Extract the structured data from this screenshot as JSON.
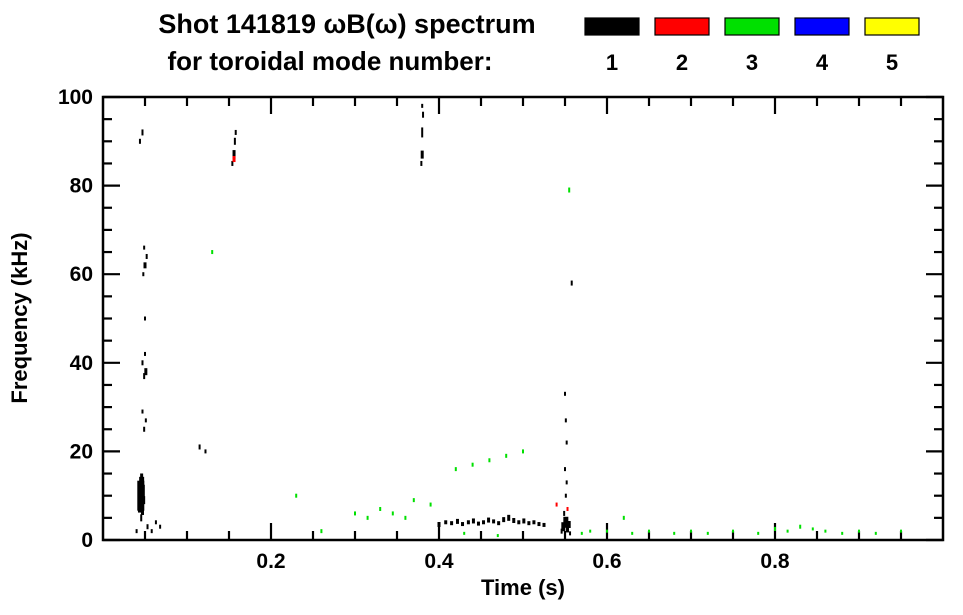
{
  "chart_data": {
    "type": "scatter",
    "title_line1": "Shot 141819 ωB(ω) spectrum",
    "title_line2": "for toroidal mode number:",
    "xlabel": "Time (s)",
    "ylabel": "Frequency (kHz)",
    "xlim": [
      0,
      1.0
    ],
    "ylim": [
      0,
      100
    ],
    "x_major_ticks": [
      0.2,
      0.4,
      0.6,
      0.8
    ],
    "x_major_labels": [
      "0.2",
      "0.4",
      "0.6",
      "0.8"
    ],
    "x_minor_step": 0.05,
    "y_major_ticks": [
      0,
      20,
      40,
      60,
      80,
      100
    ],
    "y_major_labels": [
      "0",
      "20",
      "40",
      "60",
      "80",
      "100"
    ],
    "y_minor_step": 5,
    "grid": false,
    "legend_position": "top-right",
    "legend": [
      {
        "label": "1",
        "color": "#000000"
      },
      {
        "label": "2",
        "color": "#ff0000"
      },
      {
        "label": "3",
        "color": "#00e000"
      },
      {
        "label": "4",
        "color": "#0000ff"
      },
      {
        "label": "5",
        "color": "#ffff00"
      }
    ],
    "series": [
      {
        "name": "toroidal mode n=1",
        "color": "#000000",
        "points": [
          [
            0.045,
            10,
            7,
            30
          ],
          [
            0.046,
            12,
            5,
            20
          ],
          [
            0.044,
            8,
            4,
            16
          ],
          [
            0.047,
            7,
            3,
            12
          ],
          [
            0.046,
            14,
            3,
            9
          ],
          [
            0.0455,
            5,
            2,
            7
          ],
          [
            0.048,
            11,
            3,
            13
          ],
          [
            0.043,
            12,
            2,
            9
          ],
          [
            0.049,
            9,
            2,
            8
          ],
          [
            0.053,
            3,
            2,
            5
          ],
          [
            0.058,
            2,
            2,
            4
          ],
          [
            0.063,
            4,
            2,
            4
          ],
          [
            0.068,
            3,
            2,
            4
          ],
          [
            0.04,
            2,
            2,
            4
          ],
          [
            0.049,
            25,
            2,
            5
          ],
          [
            0.051,
            27,
            2,
            4
          ],
          [
            0.047,
            29,
            2,
            4
          ],
          [
            0.049,
            37,
            2,
            6
          ],
          [
            0.051,
            38,
            3,
            7
          ],
          [
            0.047,
            40,
            2,
            5
          ],
          [
            0.05,
            42,
            2,
            4
          ],
          [
            0.05,
            50,
            2,
            4
          ],
          [
            0.048,
            60,
            2,
            4
          ],
          [
            0.05,
            62,
            3,
            6
          ],
          [
            0.052,
            64,
            2,
            5
          ],
          [
            0.049,
            66,
            2,
            4
          ],
          [
            0.044,
            90,
            2,
            5
          ],
          [
            0.047,
            92,
            2,
            6
          ],
          [
            0.115,
            21,
            2,
            5
          ],
          [
            0.122,
            20,
            2,
            4
          ],
          [
            0.154,
            85,
            2,
            5
          ],
          [
            0.156,
            87,
            3,
            9
          ],
          [
            0.157,
            90,
            2,
            7
          ],
          [
            0.158,
            92,
            2,
            5
          ],
          [
            0.379,
            85,
            2,
            5
          ],
          [
            0.38,
            87,
            3,
            8
          ],
          [
            0.38,
            92,
            2,
            10
          ],
          [
            0.381,
            96,
            2,
            6
          ],
          [
            0.38,
            98,
            2,
            4
          ],
          [
            0.4,
            3.5,
            3,
            5
          ],
          [
            0.408,
            4,
            3,
            4
          ],
          [
            0.415,
            3.8,
            3,
            4
          ],
          [
            0.422,
            4.2,
            3,
            5
          ],
          [
            0.428,
            3.6,
            3,
            4
          ],
          [
            0.435,
            4,
            3,
            4
          ],
          [
            0.441,
            4.3,
            3,
            5
          ],
          [
            0.447,
            3.7,
            3,
            4
          ],
          [
            0.453,
            4,
            3,
            4
          ],
          [
            0.459,
            4.5,
            3,
            5
          ],
          [
            0.465,
            4.2,
            3,
            4
          ],
          [
            0.471,
            3.8,
            3,
            4
          ],
          [
            0.477,
            4.6,
            3,
            5
          ],
          [
            0.483,
            5,
            3,
            6
          ],
          [
            0.489,
            4.4,
            3,
            5
          ],
          [
            0.495,
            4,
            3,
            4
          ],
          [
            0.501,
            4.3,
            3,
            5
          ],
          [
            0.507,
            3.8,
            3,
            4
          ],
          [
            0.513,
            4,
            3,
            4
          ],
          [
            0.519,
            3.6,
            3,
            4
          ],
          [
            0.525,
            3.4,
            3,
            4
          ],
          [
            0.546,
            2,
            2,
            5
          ],
          [
            0.548,
            3,
            4,
            9
          ],
          [
            0.549,
            6,
            2,
            5
          ],
          [
            0.551,
            4,
            5,
            11
          ],
          [
            0.553,
            2.5,
            3,
            7
          ],
          [
            0.555,
            3.5,
            3,
            7
          ],
          [
            0.556,
            1.5,
            2,
            4
          ],
          [
            0.551,
            10,
            2,
            4
          ],
          [
            0.552,
            13,
            2,
            4
          ],
          [
            0.55,
            16,
            2,
            4
          ],
          [
            0.552,
            22,
            2,
            4
          ],
          [
            0.551,
            27,
            2,
            4
          ],
          [
            0.55,
            33,
            2,
            4
          ],
          [
            0.558,
            58,
            2,
            5
          ]
        ]
      },
      {
        "name": "toroidal mode n=2",
        "color": "#ff0000",
        "points": [
          [
            0.156,
            86,
            3,
            6
          ],
          [
            0.54,
            8,
            2,
            4
          ],
          [
            0.553,
            7,
            2,
            4
          ]
        ]
      },
      {
        "name": "toroidal mode n=3",
        "color": "#00e000",
        "points": [
          [
            0.555,
            79,
            2,
            5
          ],
          [
            0.13,
            65,
            2,
            4
          ],
          [
            0.23,
            10,
            2,
            4
          ],
          [
            0.26,
            2,
            2,
            4
          ],
          [
            0.3,
            6,
            2,
            4
          ],
          [
            0.315,
            5,
            2,
            4
          ],
          [
            0.33,
            7,
            2,
            4
          ],
          [
            0.345,
            6,
            2,
            4
          ],
          [
            0.36,
            5,
            2,
            4
          ],
          [
            0.37,
            9,
            2,
            4
          ],
          [
            0.39,
            8,
            2,
            4
          ],
          [
            0.42,
            16,
            2,
            4
          ],
          [
            0.44,
            17,
            2,
            4
          ],
          [
            0.46,
            18,
            2,
            4
          ],
          [
            0.48,
            19,
            2,
            4
          ],
          [
            0.5,
            20,
            2,
            4
          ],
          [
            0.43,
            1.5,
            2,
            3
          ],
          [
            0.47,
            1,
            2,
            3
          ],
          [
            0.57,
            1.5,
            2,
            3
          ],
          [
            0.58,
            2,
            2,
            3
          ],
          [
            0.6,
            2,
            2,
            3
          ],
          [
            0.62,
            5,
            2,
            4
          ],
          [
            0.63,
            1.5,
            2,
            3
          ],
          [
            0.65,
            2,
            2,
            3
          ],
          [
            0.68,
            1.5,
            2,
            3
          ],
          [
            0.7,
            2,
            2,
            3
          ],
          [
            0.72,
            1.5,
            2,
            3
          ],
          [
            0.75,
            2,
            2,
            3
          ],
          [
            0.78,
            1.5,
            2,
            3
          ],
          [
            0.8,
            2.5,
            2,
            4
          ],
          [
            0.815,
            2,
            2,
            3
          ],
          [
            0.83,
            3,
            2,
            4
          ],
          [
            0.845,
            2.5,
            2,
            3
          ],
          [
            0.86,
            2,
            2,
            3
          ],
          [
            0.88,
            1.5,
            2,
            3
          ],
          [
            0.9,
            2,
            2,
            3
          ],
          [
            0.92,
            1.5,
            2,
            3
          ],
          [
            0.95,
            2,
            2,
            3
          ]
        ]
      },
      {
        "name": "toroidal mode n=4",
        "color": "#0000ff",
        "points": []
      },
      {
        "name": "toroidal mode n=5",
        "color": "#ffff00",
        "points": []
      }
    ]
  }
}
